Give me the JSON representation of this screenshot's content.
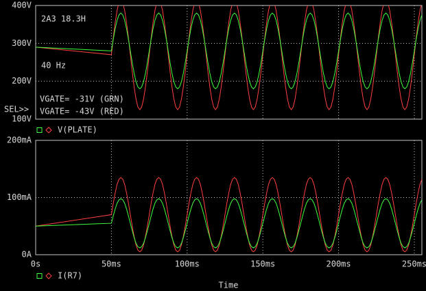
{
  "chart_data": {
    "type": "line",
    "xlabel": "Time",
    "xlim": [
      0,
      255
    ],
    "xticks": [
      {
        "value": 0,
        "label": "0s"
      },
      {
        "value": 50,
        "label": "50ms"
      },
      {
        "value": 100,
        "label": "100ms"
      },
      {
        "value": 150,
        "label": "150ms"
      },
      {
        "value": 200,
        "label": "200ms"
      },
      {
        "value": 250,
        "label": "250ms"
      }
    ],
    "grid": true,
    "x": [
      0,
      50,
      51.25,
      52.5,
      53.75,
      55,
      56.25,
      57.5,
      58.75,
      60,
      61.25,
      62.5,
      63.75,
      65,
      66.25,
      67.5,
      68.75,
      70,
      71.25,
      72.5,
      73.75,
      75,
      76.25,
      77.5,
      78.75,
      80,
      81.25,
      82.5,
      83.75,
      85,
      86.25,
      87.5,
      88.75,
      90,
      91.25,
      92.5,
      93.75,
      95,
      96.25,
      97.5,
      98.75,
      100,
      101.25,
      102.5,
      103.75,
      105,
      106.25,
      107.5,
      108.75,
      110,
      111.25,
      112.5,
      113.75,
      115,
      116.25,
      117.5,
      118.75,
      120,
      121.25,
      122.5,
      123.75,
      125,
      126.25,
      127.5,
      128.75,
      130,
      131.25,
      132.5,
      133.75,
      135,
      136.25,
      137.5,
      138.75,
      140,
      141.25,
      142.5,
      143.75,
      145,
      146.25,
      147.5,
      148.75,
      150,
      151.25,
      152.5,
      153.75,
      155,
      156.25,
      157.5,
      158.75,
      160,
      161.25,
      162.5,
      163.75,
      165,
      166.25,
      167.5,
      168.75,
      170,
      171.25,
      172.5,
      173.75,
      175,
      176.25,
      177.5,
      178.75,
      180,
      181.25,
      182.5,
      183.75,
      185,
      186.25,
      187.5,
      188.75,
      190,
      191.25,
      192.5,
      193.75,
      195,
      196.25,
      197.5,
      198.75,
      200,
      201.25,
      202.5,
      203.75,
      205,
      206.25,
      207.5,
      208.75,
      210,
      211.25,
      212.5,
      213.75,
      215,
      216.25,
      217.5,
      218.75,
      220,
      221.25,
      222.5,
      223.75,
      225,
      226.25,
      227.5,
      228.75,
      230,
      231.25,
      232.5,
      233.75,
      235,
      236.25,
      237.5,
      238.75,
      240,
      241.25,
      242.5,
      243.75,
      245,
      246.25,
      247.5,
      248.75,
      250,
      251.25,
      252.5,
      253.75,
      255
    ],
    "panels": [
      {
        "legend": "V(PLATE)",
        "ylim": [
          100,
          400
        ],
        "yticks": [
          {
            "value": 100,
            "label": "100V"
          },
          {
            "value": 200,
            "label": "200V"
          },
          {
            "value": 300,
            "label": "300V"
          },
          {
            "value": 400,
            "label": "400V"
          }
        ],
        "annotations": [
          "2A3 18.3H",
          "40 Hz",
          "VGATE= -31V (GRN)",
          "VGATE= -43V (RED)",
          "SEL>>"
        ],
        "series": [
          {
            "color": "#ff4040",
            "values": [
              290,
              270,
              315,
              355,
              387,
              408,
              415,
              408,
              387,
              355,
              315,
              270,
              225,
              185,
              153,
              132,
              125,
              132,
              153,
              185,
              225,
              270,
              315,
              355,
              387,
              408,
              415,
              408,
              387,
              355,
              315,
              270,
              225,
              185,
              153,
              132,
              125,
              132,
              153,
              185,
              225,
              270,
              315,
              355,
              387,
              408,
              415,
              408,
              387,
              355,
              315,
              270,
              225,
              185,
              153,
              132,
              125,
              132,
              153,
              185,
              225,
              270,
              315,
              355,
              387,
              408,
              415,
              408,
              387,
              355,
              315,
              270,
              225,
              185,
              153,
              132,
              125,
              132,
              153,
              185,
              225,
              270,
              315,
              355,
              387,
              408,
              415,
              408,
              387,
              355,
              315,
              270,
              225,
              185,
              153,
              132,
              125,
              132,
              153,
              185,
              225,
              270,
              315,
              355,
              387,
              408,
              415,
              408,
              387,
              355,
              315,
              270,
              225,
              185,
              153,
              132,
              125,
              132,
              153,
              185,
              225,
              270,
              315,
              355,
              387,
              408,
              415,
              408,
              387,
              355,
              315,
              270,
              225,
              185,
              153,
              132,
              125,
              132,
              153,
              185,
              225,
              270,
              315,
              355,
              387,
              408,
              415,
              408,
              387,
              355,
              315,
              270,
              225,
              185,
              153,
              132,
              125,
              132,
              153,
              185,
              225,
              270,
              315,
              355,
              387,
              408
            ]
          },
          {
            "color": "#40ff40",
            "values": [
              290,
              280,
              311,
              339,
              361,
              375,
              380,
              375,
              361,
              339,
              311,
              280,
              249,
              221,
              199,
              185,
              180,
              185,
              199,
              221,
              249,
              280,
              311,
              339,
              361,
              375,
              380,
              375,
              361,
              339,
              311,
              280,
              249,
              221,
              199,
              185,
              180,
              185,
              199,
              221,
              249,
              280,
              311,
              339,
              361,
              375,
              380,
              375,
              361,
              339,
              311,
              280,
              249,
              221,
              199,
              185,
              180,
              185,
              199,
              221,
              249,
              280,
              311,
              339,
              361,
              375,
              380,
              375,
              361,
              339,
              311,
              280,
              249,
              221,
              199,
              185,
              180,
              185,
              199,
              221,
              249,
              280,
              311,
              339,
              361,
              375,
              380,
              375,
              361,
              339,
              311,
              280,
              249,
              221,
              199,
              185,
              180,
              185,
              199,
              221,
              249,
              280,
              311,
              339,
              361,
              375,
              380,
              375,
              361,
              339,
              311,
              280,
              249,
              221,
              199,
              185,
              180,
              185,
              199,
              221,
              249,
              280,
              311,
              339,
              361,
              375,
              380,
              375,
              361,
              339,
              311,
              280,
              249,
              221,
              199,
              185,
              180,
              185,
              199,
              221,
              249,
              280,
              311,
              339,
              361,
              375,
              380,
              375,
              361,
              339,
              311,
              280,
              249,
              221,
              199,
              185,
              180,
              185,
              199,
              221,
              249,
              280,
              311,
              339,
              361,
              375
            ]
          }
        ]
      },
      {
        "legend": "I(R7)",
        "ylim": [
          0,
          200
        ],
        "yticks": [
          {
            "value": 0,
            "label": "0A"
          },
          {
            "value": 100,
            "label": "100mA"
          },
          {
            "value": 200,
            "label": "200mA"
          }
        ],
        "annotations": [],
        "series": [
          {
            "color": "#ff4040",
            "values": [
              50,
              70,
              90,
              108,
              123,
              132,
              135,
              132,
              123,
              108,
              90,
              70,
              50,
              32,
              17,
              8,
              5,
              8,
              17,
              32,
              50,
              70,
              90,
              108,
              123,
              132,
              135,
              132,
              123,
              108,
              90,
              70,
              50,
              32,
              17,
              8,
              5,
              8,
              17,
              32,
              50,
              70,
              90,
              108,
              123,
              132,
              135,
              132,
              123,
              108,
              90,
              70,
              50,
              32,
              17,
              8,
              5,
              8,
              17,
              32,
              50,
              70,
              90,
              108,
              123,
              132,
              135,
              132,
              123,
              108,
              90,
              70,
              50,
              32,
              17,
              8,
              5,
              8,
              17,
              32,
              50,
              70,
              90,
              108,
              123,
              132,
              135,
              132,
              123,
              108,
              90,
              70,
              50,
              32,
              17,
              8,
              5,
              8,
              17,
              32,
              50,
              70,
              90,
              108,
              123,
              132,
              135,
              132,
              123,
              108,
              90,
              70,
              50,
              32,
              17,
              8,
              5,
              8,
              17,
              32,
              50,
              70,
              90,
              108,
              123,
              132,
              135,
              132,
              123,
              108,
              90,
              70,
              50,
              32,
              17,
              8,
              5,
              8,
              17,
              32,
              50,
              70,
              90,
              108,
              123,
              132,
              135,
              132,
              123,
              108,
              90,
              70,
              50,
              32,
              17,
              8,
              5,
              8,
              17,
              32,
              50,
              70,
              90,
              108,
              123,
              132
            ]
          },
          {
            "color": "#40ff40",
            "values": [
              50,
              55,
              68,
              80,
              90,
              96,
              98,
              96,
              90,
              80,
              68,
              55,
              42,
              30,
              20,
              14,
              12,
              14,
              20,
              30,
              42,
              55,
              68,
              80,
              90,
              96,
              98,
              96,
              90,
              80,
              68,
              55,
              42,
              30,
              20,
              14,
              12,
              14,
              20,
              30,
              42,
              55,
              68,
              80,
              90,
              96,
              98,
              96,
              90,
              80,
              68,
              55,
              42,
              30,
              20,
              14,
              12,
              14,
              20,
              30,
              42,
              55,
              68,
              80,
              90,
              96,
              98,
              96,
              90,
              80,
              68,
              55,
              42,
              30,
              20,
              14,
              12,
              14,
              20,
              30,
              42,
              55,
              68,
              80,
              90,
              96,
              98,
              96,
              90,
              80,
              68,
              55,
              42,
              30,
              20,
              14,
              12,
              14,
              20,
              30,
              42,
              55,
              68,
              80,
              90,
              96,
              98,
              96,
              90,
              80,
              68,
              55,
              42,
              30,
              20,
              14,
              12,
              14,
              20,
              30,
              42,
              55,
              68,
              80,
              90,
              96,
              98,
              96,
              90,
              80,
              68,
              55,
              42,
              30,
              20,
              14,
              12,
              14,
              20,
              30,
              42,
              55,
              68,
              80,
              90,
              96,
              98,
              96,
              90,
              80,
              68,
              55,
              42,
              30,
              20,
              14,
              12,
              14,
              20,
              30,
              42,
              55,
              68,
              80,
              90,
              96
            ]
          }
        ]
      }
    ]
  }
}
